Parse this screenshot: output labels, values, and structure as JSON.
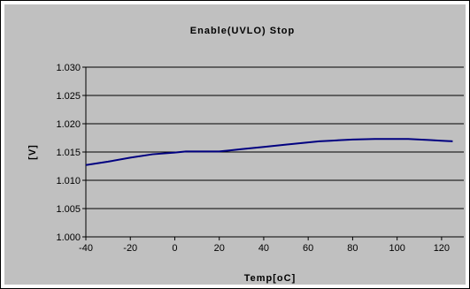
{
  "chart_data": {
    "type": "line",
    "title": "Enable(UVLO) Stop",
    "xlabel": "Temp[oC]",
    "ylabel": "[V]",
    "xlim": [
      -40,
      130
    ],
    "ylim": [
      1.0,
      1.03
    ],
    "x_ticks": [
      -40,
      -20,
      0,
      20,
      40,
      60,
      80,
      100,
      120
    ],
    "x_tick_labels": [
      "-40",
      "-20",
      "0",
      "20",
      "40",
      "60",
      "80",
      "100",
      "120"
    ],
    "y_ticks": [
      1.0,
      1.005,
      1.01,
      1.015,
      1.02,
      1.025,
      1.03
    ],
    "y_tick_labels": [
      "1.000",
      "1.005",
      "1.010",
      "1.015",
      "1.020",
      "1.025",
      "1.030"
    ],
    "grid": "horizontal",
    "legend": "none",
    "colors": {
      "line": "#000080",
      "plot_bg": "#c0c0c0",
      "frame_bg": "#ffffff"
    },
    "series": [
      {
        "x": [
          -40,
          -30,
          -20,
          -10,
          0,
          5,
          10,
          20,
          25,
          30,
          40,
          50,
          60,
          65,
          70,
          80,
          90,
          100,
          105,
          110,
          115,
          120,
          125
        ],
        "y": [
          1.0127,
          1.0133,
          1.014,
          1.0146,
          1.0149,
          1.0151,
          1.0151,
          1.0151,
          1.0153,
          1.0155,
          1.0159,
          1.0163,
          1.0167,
          1.0169,
          1.017,
          1.0172,
          1.0173,
          1.0173,
          1.0173,
          1.0172,
          1.0171,
          1.017,
          1.0169
        ]
      }
    ]
  }
}
